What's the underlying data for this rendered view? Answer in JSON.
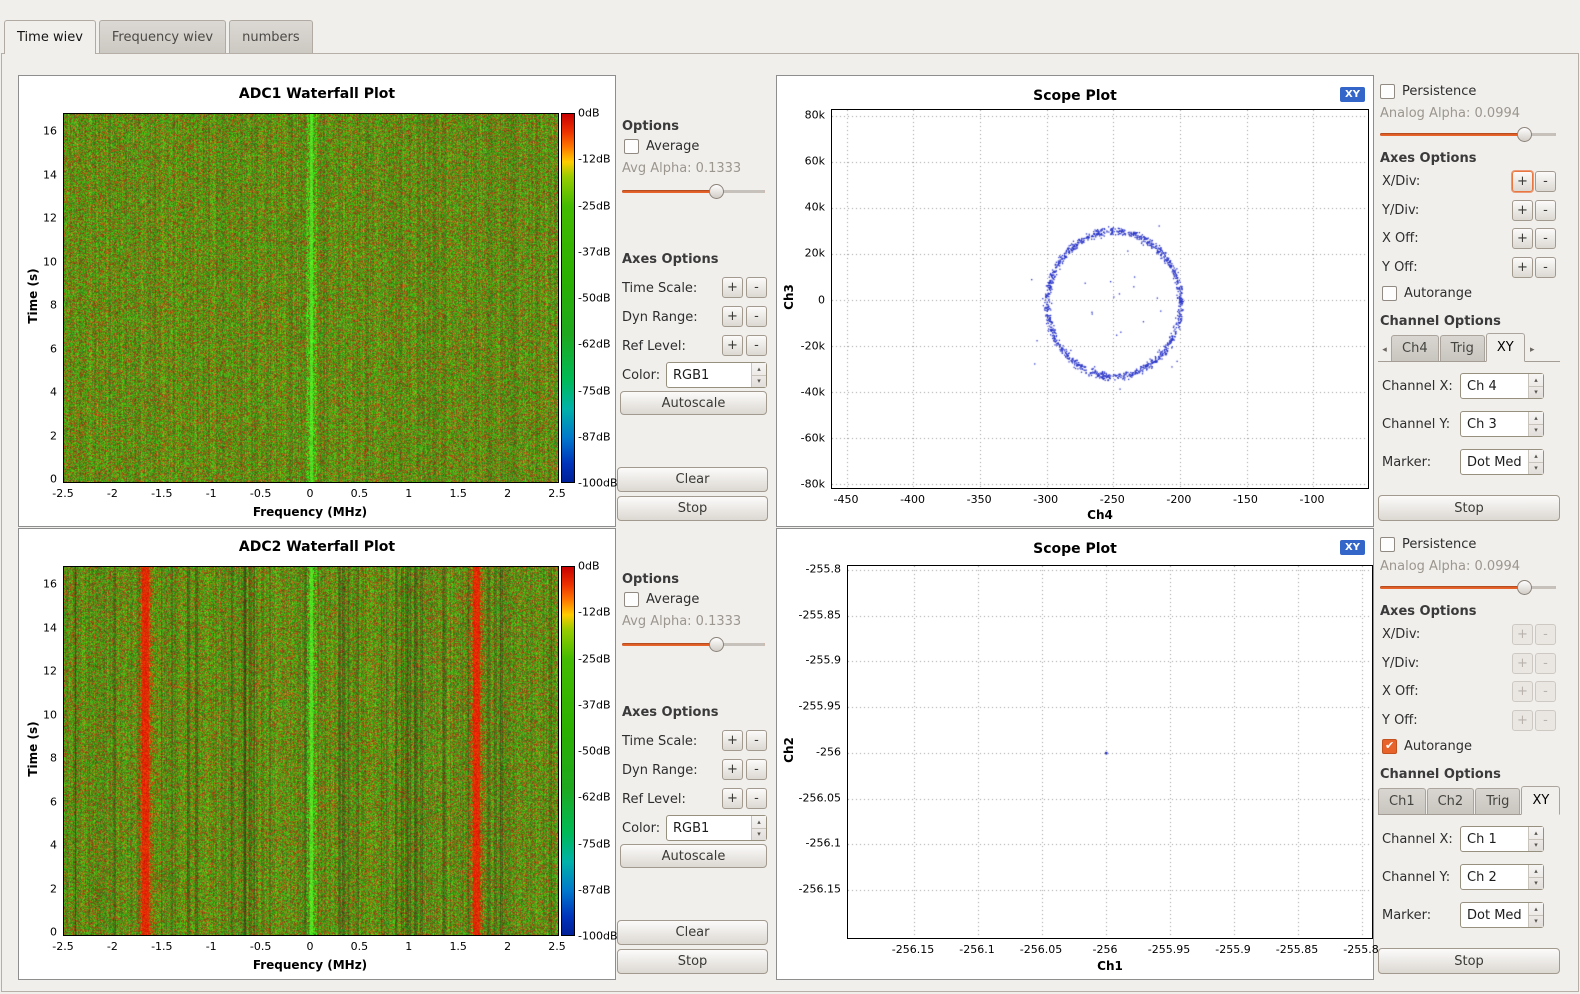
{
  "ui": {
    "plus": "+",
    "minus": "-"
  },
  "colors": {
    "accent_orange": "#e8632a",
    "badge_blue": "#3465c8",
    "scatter_blue": "#2a35c8",
    "window_bg": "#f1efec"
  },
  "tabbar": {
    "tabs": [
      {
        "label": "Time wiev",
        "active": true
      },
      {
        "label": "Frequency wiev",
        "active": false
      },
      {
        "label": "numbers",
        "active": false
      }
    ]
  },
  "wf_options": {
    "options_header": "Options",
    "average": "Average",
    "avg_alpha": "Avg Alpha: 0.1333",
    "axes_header": "Axes Options",
    "time_scale": "Time Scale:",
    "dyn_range": "Dyn Range:",
    "ref_level": "Ref Level:",
    "color_label": "Color:",
    "color_value": "RGB1",
    "autoscale": "Autoscale",
    "clear": "Clear",
    "stop": "Stop"
  },
  "panels": {
    "wf1": {
      "title": "ADC1 Waterfall Plot",
      "xlabel": "Frequency (MHz)",
      "ylabel": "Time (s)",
      "x_ticks": [
        "-2.5",
        "-2",
        "-1.5",
        "-1",
        "-0.5",
        "0",
        "0.5",
        "1",
        "1.5",
        "2",
        "2.5"
      ],
      "y_ticks": [
        "16",
        "14",
        "12",
        "10",
        "8",
        "6",
        "4",
        "2",
        "0"
      ],
      "colorbar_labels": [
        "0dB",
        "-12dB",
        "-25dB",
        "-37dB",
        "-50dB",
        "-62dB",
        "-75dB",
        "-87dB",
        "-100dB"
      ]
    },
    "wf2": {
      "title": "ADC2 Waterfall Plot",
      "xlabel": "Frequency (MHz)",
      "ylabel": "Time (s)",
      "x_ticks": [
        "-2.5",
        "-2",
        "-1.5",
        "-1",
        "-0.5",
        "0",
        "0.5",
        "1",
        "1.5",
        "2",
        "2.5"
      ],
      "y_ticks": [
        "16",
        "14",
        "12",
        "10",
        "8",
        "6",
        "4",
        "2",
        "0"
      ],
      "colorbar_labels": [
        "0dB",
        "-12dB",
        "-25dB",
        "-37dB",
        "-50dB",
        "-62dB",
        "-75dB",
        "-87dB",
        "-100dB"
      ]
    },
    "scope1": {
      "title": "Scope Plot",
      "badge": "XY",
      "xlabel": "Ch4",
      "ylabel": "Ch3",
      "x_ticks": [
        "-450",
        "-400",
        "-350",
        "-300",
        "-250",
        "-200",
        "-150",
        "-100"
      ],
      "y_ticks": [
        "80k",
        "60k",
        "40k",
        "20k",
        "0",
        "-20k",
        "-40k",
        "-60k",
        "-80k"
      ]
    },
    "scope2": {
      "title": "Scope Plot",
      "badge": "XY",
      "xlabel": "Ch1",
      "ylabel": "Ch2",
      "x_ticks": [
        "-256.15",
        "-256.1",
        "-256.05",
        "-256",
        "-255.95",
        "-255.9",
        "-255.85",
        "-255.8"
      ],
      "y_ticks": [
        "-255.8",
        "-255.85",
        "-255.9",
        "-255.95",
        "-256",
        "-256.05",
        "-256.1",
        "-256.15"
      ]
    }
  },
  "scope1_ctrl": {
    "persistence": "Persistence",
    "alpha": "Analog Alpha: 0.0994",
    "axes_header": "Axes Options",
    "xdiv": "X/Div:",
    "ydiv": "Y/Div:",
    "xoff": "X Off:",
    "yoff": "Y Off:",
    "autorange": "Autorange",
    "autorange_checked": false,
    "channel_header": "Channel Options",
    "tabs": {
      "items": [
        "Ch4",
        "Trig",
        "XY"
      ],
      "active": "XY"
    },
    "channel_x_label": "Channel X:",
    "channel_x_value": "Ch 4",
    "channel_y_label": "Channel Y:",
    "channel_y_value": "Ch 3",
    "marker_label": "Marker:",
    "marker_value": "Dot Med",
    "stop": "Stop"
  },
  "scope2_ctrl": {
    "persistence": "Persistence",
    "alpha": "Analog Alpha: 0.0994",
    "axes_header": "Axes Options",
    "xdiv": "X/Div:",
    "ydiv": "Y/Div:",
    "xoff": "X Off:",
    "yoff": "Y Off:",
    "autorange": "Autorange",
    "autorange_checked": true,
    "channel_header": "Channel Options",
    "tabs": {
      "items": [
        "Ch1",
        "Ch2",
        "Trig",
        "XY"
      ],
      "active": "XY"
    },
    "channel_x_label": "Channel X:",
    "channel_x_value": "Ch 1",
    "channel_y_label": "Channel Y:",
    "channel_y_value": "Ch 2",
    "marker_label": "Marker:",
    "marker_value": "Dot Med",
    "stop": "Stop"
  },
  "chart_data": [
    {
      "id": "wf1",
      "type": "heatmap",
      "title": "ADC1 Waterfall Plot",
      "xlabel": "Frequency (MHz)",
      "ylabel": "Time (s)",
      "xlim": [
        -2.5,
        2.5
      ],
      "ylim": [
        0,
        17
      ],
      "x_ticks": [
        -2.5,
        -2,
        -1.5,
        -1,
        -0.5,
        0,
        0.5,
        1,
        1.5,
        2,
        2.5
      ],
      "y_ticks": [
        16,
        14,
        12,
        10,
        8,
        6,
        4,
        2,
        0
      ],
      "colorbar_db": [
        0,
        -12,
        -25,
        -37,
        -50,
        -62,
        -75,
        -87,
        -100
      ],
      "content": "uniform green/red speckled noise floor over full time span with a narrow bright green carrier line at 0 MHz",
      "lines": [
        {
          "mhz": 0,
          "color": "green"
        }
      ],
      "striations": false
    },
    {
      "id": "wf2",
      "type": "heatmap",
      "title": "ADC2 Waterfall Plot",
      "xlabel": "Frequency (MHz)",
      "ylabel": "Time (s)",
      "xlim": [
        -2.5,
        2.5
      ],
      "ylim": [
        0,
        17
      ],
      "x_ticks": [
        -2.5,
        -2,
        -1.5,
        -1,
        -0.5,
        0,
        0.5,
        1,
        1.5,
        2,
        2.5
      ],
      "y_ticks": [
        16,
        14,
        12,
        10,
        8,
        6,
        4,
        2,
        0
      ],
      "colorbar_db": [
        0,
        -12,
        -25,
        -37,
        -50,
        -62,
        -75,
        -87,
        -100
      ],
      "content": "green noise floor with strong red (high power) vertical bands near -1.68 MHz and +1.67 MHz, bright green carrier at 0 MHz, faint dark striations",
      "lines": [
        {
          "mhz": -1.68,
          "color": "red"
        },
        {
          "mhz": 0,
          "color": "green"
        },
        {
          "mhz": 1.67,
          "color": "red"
        }
      ],
      "striations": true
    },
    {
      "id": "scope1",
      "type": "scatter",
      "title": "Scope Plot",
      "xlabel": "Ch4",
      "ylabel": "Ch3",
      "xlim": [
        -461,
        -59
      ],
      "ylim": [
        -81600,
        82400
      ],
      "x_ticks": [
        -450,
        -400,
        -350,
        -300,
        -250,
        -200,
        -150,
        -100
      ],
      "y_ticks": [
        80000,
        60000,
        40000,
        20000,
        0,
        -20000,
        -40000,
        -60000,
        -80000
      ],
      "grid": "dotted",
      "content": "XY mode: noisy ring (ellipse) of blue sample dots centered near Ch4=-250, Ch3=0",
      "ellipse": {
        "cx": -250,
        "cy": -1500,
        "rx": 50,
        "ry": 31500
      }
    },
    {
      "id": "scope2",
      "type": "scatter",
      "title": "Scope Plot",
      "xlabel": "Ch1",
      "ylabel": "Ch2",
      "xlim": [
        -256.2016,
        -255.7922
      ],
      "ylim": [
        -256.2025,
        -255.7956
      ],
      "x_ticks": [
        -256.15,
        -256.1,
        -256.05,
        -256,
        -255.95,
        -255.9,
        -255.85,
        -255.8
      ],
      "y_ticks": [
        -255.8,
        -255.85,
        -255.9,
        -255.95,
        -256,
        -256.05,
        -256.1,
        -256.15
      ],
      "grid": "dotted",
      "content": "XY mode: single tiny sample cluster near (-256, -256)",
      "point": {
        "x": -256,
        "y": -256
      }
    }
  ]
}
